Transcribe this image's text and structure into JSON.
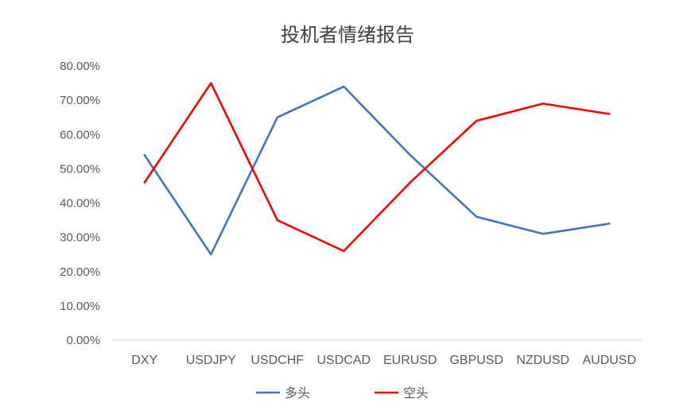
{
  "chart_data": {
    "type": "line",
    "title": "投机者情绪报告",
    "categories": [
      "DXY",
      "USDJPY",
      "USDCHF",
      "USDCAD",
      "EURUSD",
      "GBPUSD",
      "NZDUSD",
      "AUDUSD"
    ],
    "ylim": [
      0,
      0.8
    ],
    "ytick_values": [
      0,
      0.1,
      0.2,
      0.3,
      0.4,
      0.5,
      0.6,
      0.7,
      0.8
    ],
    "ytick_labels": [
      "0.00%",
      "10.00%",
      "20.00%",
      "30.00%",
      "40.00%",
      "50.00%",
      "60.00%",
      "70.00%",
      "80.00%"
    ],
    "grid": false,
    "legend_position": "bottom",
    "series": [
      {
        "name": "多头",
        "color": "#4472c4",
        "values": [
          0.54,
          0.25,
          0.65,
          0.74,
          0.54,
          0.36,
          0.31,
          0.34
        ]
      },
      {
        "name": "空头",
        "color": "#ff0000",
        "values": [
          0.46,
          0.75,
          0.35,
          0.26,
          0.46,
          0.64,
          0.69,
          0.66
        ]
      }
    ]
  }
}
